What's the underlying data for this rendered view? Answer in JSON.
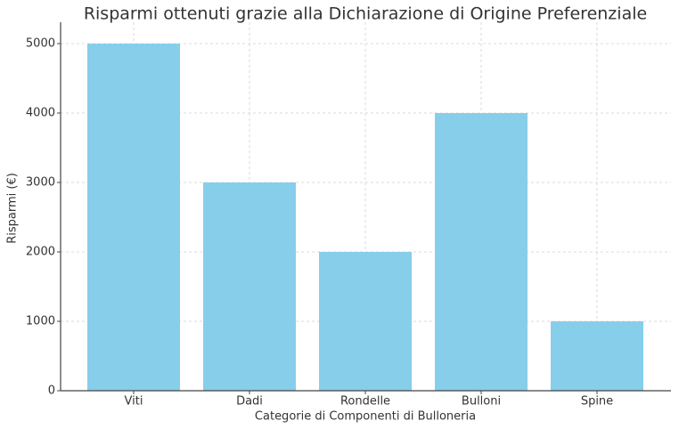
{
  "chart_data": {
    "type": "bar",
    "title": "Risparmi ottenuti grazie alla Dichiarazione di Origine Preferenziale",
    "x_label": "Categorie di Componenti di Bulloneria",
    "y_label": "Risparmi (€)",
    "categories": [
      "Viti",
      "Dadi",
      "Rondelle",
      "Bulloni",
      "Spine"
    ],
    "values": [
      5000,
      3000,
      2000,
      4000,
      1000
    ],
    "color": "#87ceeb",
    "ylim": [
      0,
      5250
    ],
    "yticks": [
      0,
      1000,
      2000,
      3000,
      4000,
      5000
    ],
    "grid": true
  }
}
